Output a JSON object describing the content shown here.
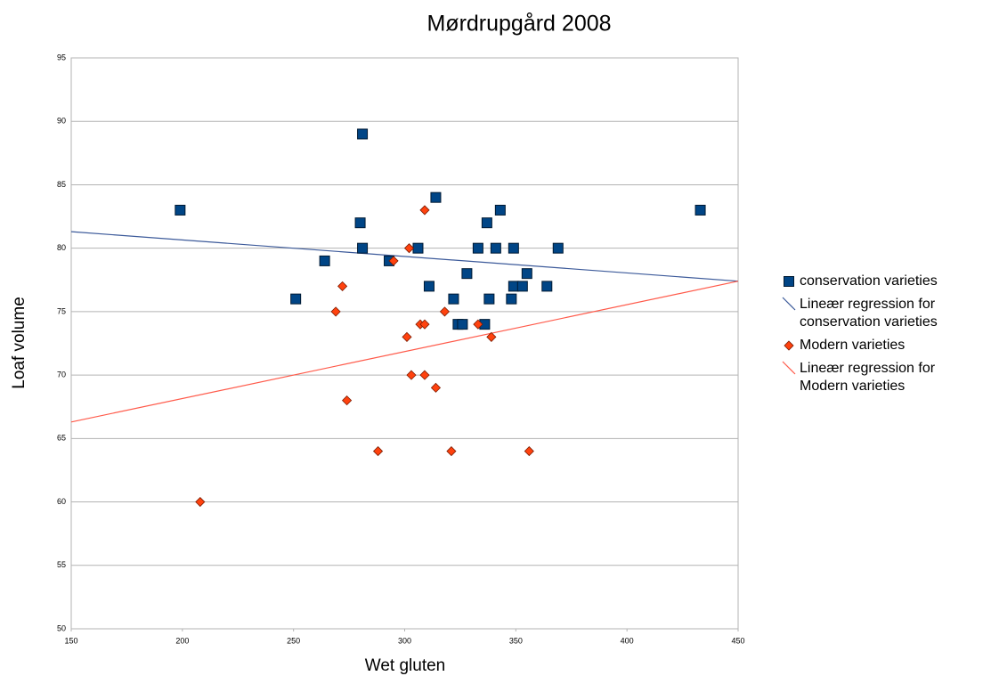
{
  "chart_data": {
    "type": "scatter",
    "title": "Mørdrupgård 2008",
    "x_label": "Wet gluten",
    "y_label": "Loaf volume",
    "xlim": [
      150,
      450
    ],
    "xticks": [
      150,
      200,
      250,
      300,
      350,
      400,
      450
    ],
    "ylim": [
      50,
      95
    ],
    "yticks": [
      50,
      55,
      60,
      65,
      70,
      75,
      80,
      85,
      90,
      95
    ],
    "grid": true,
    "legend": "right",
    "series": [
      {
        "name": "conservation varieties",
        "color": "#004586",
        "marker": "square",
        "x": [
          199,
          281,
          280,
          281,
          306,
          293,
          264,
          251,
          314,
          311,
          322,
          324,
          326,
          328,
          333,
          337,
          338,
          341,
          343,
          336,
          348,
          349,
          349,
          353,
          355,
          364,
          369,
          433
        ],
        "values": [
          83,
          89,
          82,
          80,
          80,
          79,
          79,
          76,
          84,
          77,
          76,
          74,
          74,
          78,
          80,
          82,
          76,
          80,
          83,
          74,
          76,
          80,
          77,
          77,
          78,
          77,
          80,
          83
        ]
      },
      {
        "name": "Lineær regression for conservation varieties",
        "color": "#3c5a9a",
        "marker": "line",
        "x": [
          150,
          450
        ],
        "values": [
          81.3,
          77.4
        ]
      },
      {
        "name": "Modern varieties",
        "color": "#ff420e",
        "marker": "diamond",
        "x": [
          208,
          272,
          269,
          274,
          288,
          295,
          302,
          301,
          303,
          309,
          307,
          309,
          309,
          318,
          314,
          321,
          333,
          339,
          356
        ],
        "values": [
          60,
          77,
          75,
          68,
          64,
          79,
          80,
          73,
          70,
          83,
          74,
          74,
          70,
          75,
          69,
          64,
          74,
          73,
          64
        ]
      },
      {
        "name": "Lineær regression for Modern varieties",
        "color": "#ff5a4a",
        "marker": "line",
        "x": [
          150,
          450
        ],
        "values": [
          66.3,
          77.4
        ]
      }
    ]
  }
}
